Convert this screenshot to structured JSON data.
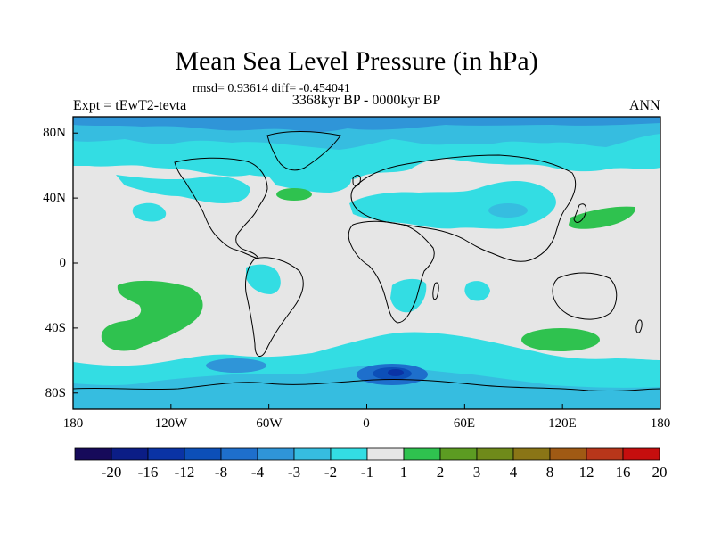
{
  "title": "Mean Sea Level Pressure (in hPa)",
  "stats": "rmsd= 0.93614 diff= -0.454041",
  "experiment": "Expt = tEwT2-tevta",
  "period": "3368kyr BP - 0000kyr BP",
  "season": "ANN",
  "map": {
    "lat_labels": [
      "80N",
      "40N",
      "0",
      "40S",
      "80S"
    ],
    "lon_labels": [
      "180",
      "120W",
      "60W",
      "0",
      "60E",
      "120E",
      "180"
    ]
  },
  "colorbar": {
    "labels": [
      "-20",
      "-16",
      "-12",
      "-8",
      "-4",
      "-3",
      "-2",
      "-1",
      "1",
      "2",
      "3",
      "4",
      "8",
      "12",
      "16",
      "20"
    ],
    "colors": [
      "#160a5a",
      "#0b1d86",
      "#0a33a5",
      "#0c4fb8",
      "#1e6fcc",
      "#2f95d8",
      "#36bde0",
      "#33dde3",
      "#e6e6e6",
      "#2fc24f",
      "#5c9c22",
      "#6f8a1a",
      "#8a7516",
      "#a05a14",
      "#b8361a",
      "#c60e0e"
    ]
  }
}
